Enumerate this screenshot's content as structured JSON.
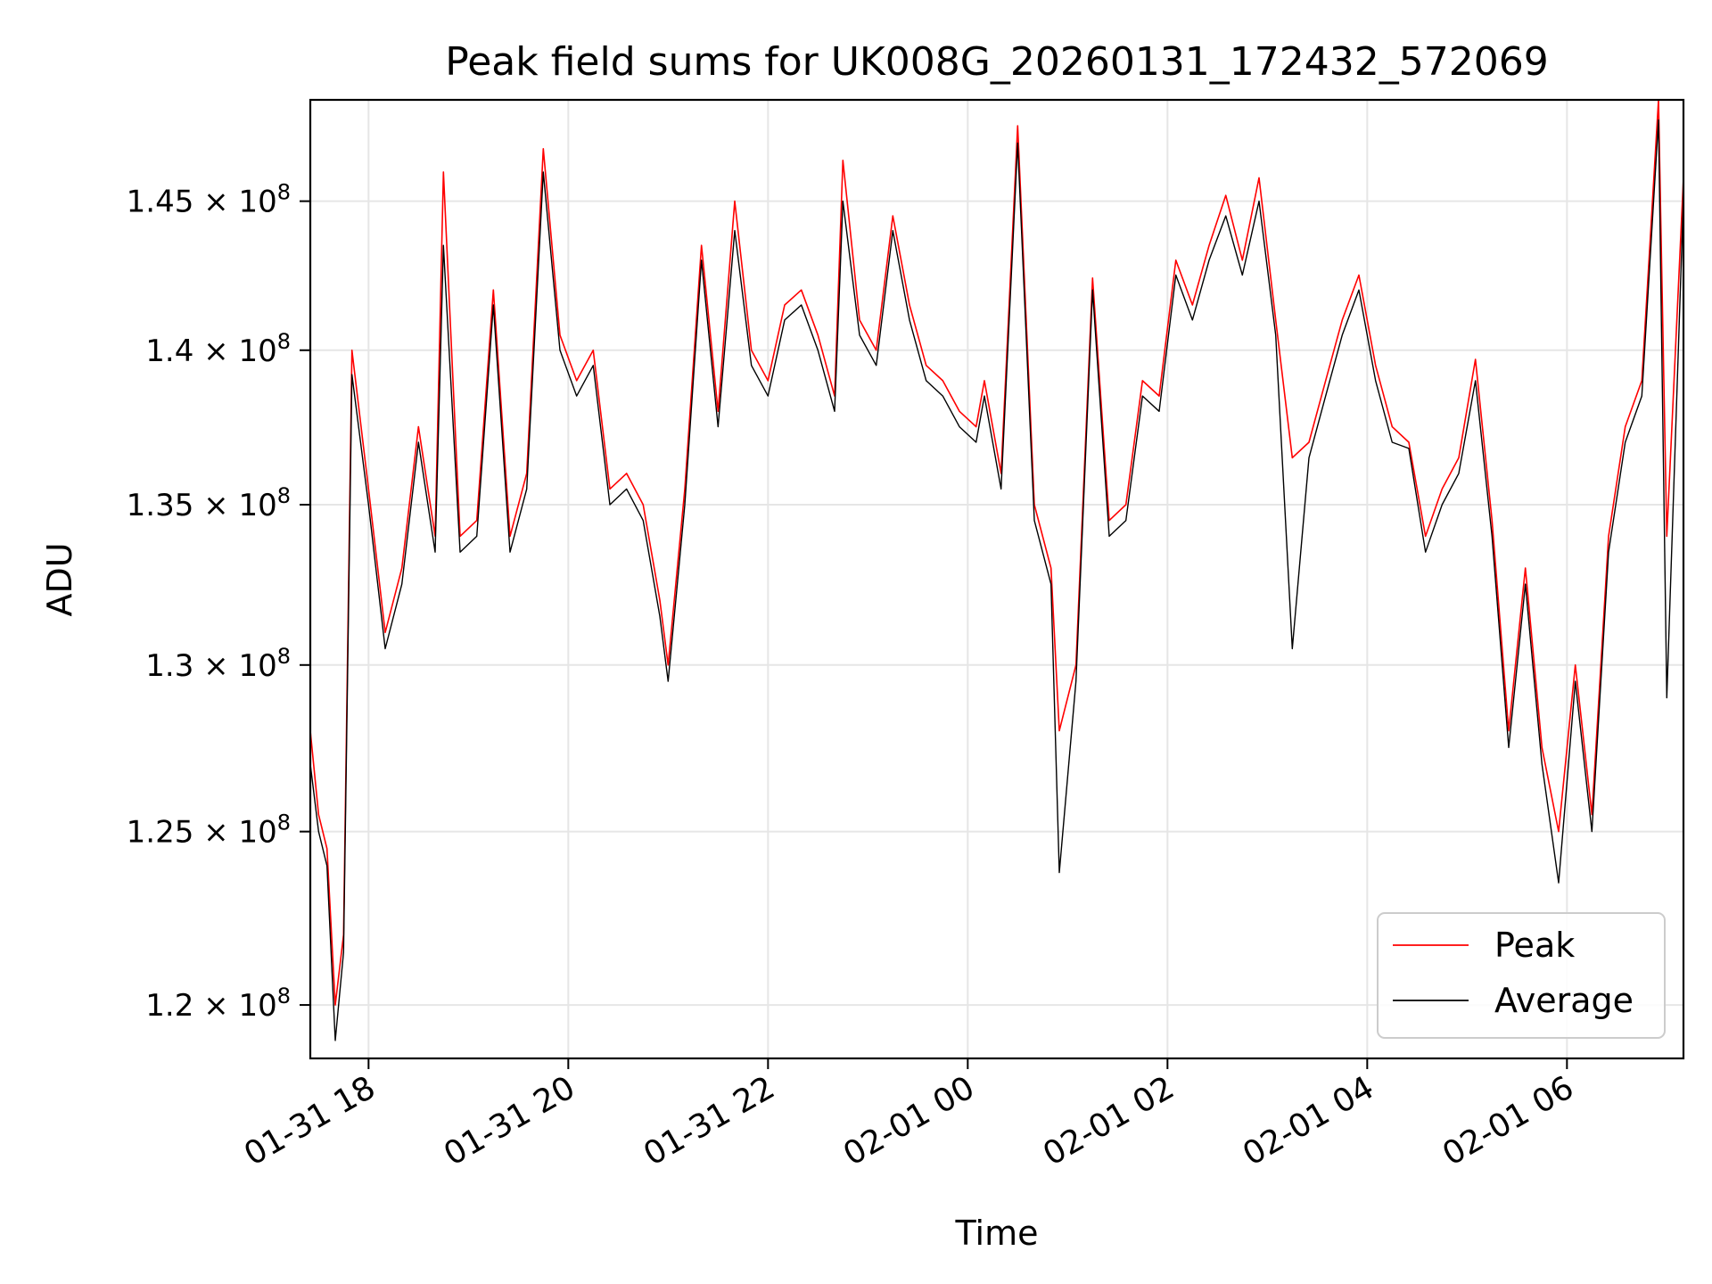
{
  "chart_data": {
    "type": "line",
    "title": "Peak field sums for UK008G_20260131_172432_572069",
    "xlabel": "Time",
    "ylabel": "ADU",
    "x_range": [
      "2026-01-31 17:25",
      "2026-02-01 07:10"
    ],
    "x_ticks": [
      {
        "t": "2026-01-31 18:00",
        "label": "01-31 18"
      },
      {
        "t": "2026-01-31 20:00",
        "label": "01-31 20"
      },
      {
        "t": "2026-01-31 22:00",
        "label": "01-31 22"
      },
      {
        "t": "2026-02-01 00:00",
        "label": "02-01 00"
      },
      {
        "t": "2026-02-01 02:00",
        "label": "02-01 02"
      },
      {
        "t": "2026-02-01 04:00",
        "label": "02-01 04"
      },
      {
        "t": "2026-02-01 06:00",
        "label": "02-01 06"
      }
    ],
    "y_scale": "log",
    "ylim": [
      118500000,
      148500000
    ],
    "y_ticks": [
      {
        "v": 120000000,
        "mant": "1.2"
      },
      {
        "v": 125000000,
        "mant": "1.25"
      },
      {
        "v": 130000000,
        "mant": "1.3"
      },
      {
        "v": 135000000,
        "mant": "1.35"
      },
      {
        "v": 140000000,
        "mant": "1.4"
      },
      {
        "v": 145000000,
        "mant": "1.45"
      }
    ],
    "y_tick_exp": "8",
    "grid": true,
    "legend_position": "lower right",
    "series": [
      {
        "name": "Peak",
        "color": "#ff0000",
        "points": [
          [
            "2026-01-31 17:25",
            128000000
          ],
          [
            "2026-01-31 17:30",
            125500000
          ],
          [
            "2026-01-31 17:35",
            124500000
          ],
          [
            "2026-01-31 17:40",
            120000000
          ],
          [
            "2026-01-31 17:45",
            122000000
          ],
          [
            "2026-01-31 17:50",
            140000000
          ],
          [
            "2026-01-31 18:00",
            135500000
          ],
          [
            "2026-01-31 18:10",
            131000000
          ],
          [
            "2026-01-31 18:20",
            133000000
          ],
          [
            "2026-01-31 18:30",
            137500000
          ],
          [
            "2026-01-31 18:40",
            134000000
          ],
          [
            "2026-01-31 18:45",
            146000000
          ],
          [
            "2026-01-31 18:55",
            134000000
          ],
          [
            "2026-01-31 19:05",
            134500000
          ],
          [
            "2026-01-31 19:15",
            142000000
          ],
          [
            "2026-01-31 19:25",
            134000000
          ],
          [
            "2026-01-31 19:35",
            136000000
          ],
          [
            "2026-01-31 19:45",
            146800000
          ],
          [
            "2026-01-31 19:55",
            140500000
          ],
          [
            "2026-01-31 20:05",
            139000000
          ],
          [
            "2026-01-31 20:15",
            140000000
          ],
          [
            "2026-01-31 20:25",
            135500000
          ],
          [
            "2026-01-31 20:35",
            136000000
          ],
          [
            "2026-01-31 20:45",
            135000000
          ],
          [
            "2026-01-31 20:55",
            132000000
          ],
          [
            "2026-01-31 21:00",
            130000000
          ],
          [
            "2026-01-31 21:10",
            135500000
          ],
          [
            "2026-01-31 21:20",
            143500000
          ],
          [
            "2026-01-31 21:30",
            138000000
          ],
          [
            "2026-01-31 21:40",
            145000000
          ],
          [
            "2026-01-31 21:50",
            140000000
          ],
          [
            "2026-01-31 22:00",
            139000000
          ],
          [
            "2026-01-31 22:10",
            141500000
          ],
          [
            "2026-01-31 22:20",
            142000000
          ],
          [
            "2026-01-31 22:30",
            140500000
          ],
          [
            "2026-01-31 22:40",
            138500000
          ],
          [
            "2026-01-31 22:45",
            146400000
          ],
          [
            "2026-01-31 22:55",
            141000000
          ],
          [
            "2026-01-31 23:05",
            140000000
          ],
          [
            "2026-01-31 23:15",
            144500000
          ],
          [
            "2026-01-31 23:25",
            141500000
          ],
          [
            "2026-01-31 23:35",
            139500000
          ],
          [
            "2026-01-31 23:45",
            139000000
          ],
          [
            "2026-01-31 23:55",
            138000000
          ],
          [
            "2026-02-01 00:05",
            137500000
          ],
          [
            "2026-02-01 00:10",
            139000000
          ],
          [
            "2026-02-01 00:20",
            136000000
          ],
          [
            "2026-02-01 00:30",
            147600000
          ],
          [
            "2026-02-01 00:40",
            135000000
          ],
          [
            "2026-02-01 00:50",
            133000000
          ],
          [
            "2026-02-01 00:55",
            128000000
          ],
          [
            "2026-02-01 01:05",
            130000000
          ],
          [
            "2026-02-01 01:15",
            142400000
          ],
          [
            "2026-02-01 01:25",
            134500000
          ],
          [
            "2026-02-01 01:35",
            135000000
          ],
          [
            "2026-02-01 01:45",
            139000000
          ],
          [
            "2026-02-01 01:55",
            138500000
          ],
          [
            "2026-02-01 02:05",
            143000000
          ],
          [
            "2026-02-01 02:15",
            141500000
          ],
          [
            "2026-02-01 02:25",
            143500000
          ],
          [
            "2026-02-01 02:35",
            145200000
          ],
          [
            "2026-02-01 02:45",
            143000000
          ],
          [
            "2026-02-01 02:55",
            145800000
          ],
          [
            "2026-02-01 03:05",
            141000000
          ],
          [
            "2026-02-01 03:15",
            136500000
          ],
          [
            "2026-02-01 03:25",
            137000000
          ],
          [
            "2026-02-01 03:35",
            139000000
          ],
          [
            "2026-02-01 03:45",
            141000000
          ],
          [
            "2026-02-01 03:55",
            142500000
          ],
          [
            "2026-02-01 04:05",
            139500000
          ],
          [
            "2026-02-01 04:15",
            137500000
          ],
          [
            "2026-02-01 04:25",
            137000000
          ],
          [
            "2026-02-01 04:35",
            134000000
          ],
          [
            "2026-02-01 04:45",
            135500000
          ],
          [
            "2026-02-01 04:55",
            136500000
          ],
          [
            "2026-02-01 05:05",
            139700000
          ],
          [
            "2026-02-01 05:15",
            134500000
          ],
          [
            "2026-02-01 05:25",
            128000000
          ],
          [
            "2026-02-01 05:35",
            133000000
          ],
          [
            "2026-02-01 05:45",
            127500000
          ],
          [
            "2026-02-01 05:55",
            125000000
          ],
          [
            "2026-02-01 06:05",
            130000000
          ],
          [
            "2026-02-01 06:15",
            125500000
          ],
          [
            "2026-02-01 06:25",
            134000000
          ],
          [
            "2026-02-01 06:35",
            137500000
          ],
          [
            "2026-02-01 06:45",
            139000000
          ],
          [
            "2026-02-01 06:55",
            148500000
          ],
          [
            "2026-02-01 07:00",
            134000000
          ],
          [
            "2026-02-01 07:10",
            145800000
          ]
        ]
      },
      {
        "name": "Average",
        "color": "#000000",
        "points": [
          [
            "2026-01-31 17:25",
            127000000
          ],
          [
            "2026-01-31 17:30",
            125000000
          ],
          [
            "2026-01-31 17:35",
            124000000
          ],
          [
            "2026-01-31 17:40",
            119000000
          ],
          [
            "2026-01-31 17:45",
            121500000
          ],
          [
            "2026-01-31 17:50",
            139200000
          ],
          [
            "2026-01-31 18:00",
            135000000
          ],
          [
            "2026-01-31 18:10",
            130500000
          ],
          [
            "2026-01-31 18:20",
            132500000
          ],
          [
            "2026-01-31 18:30",
            137000000
          ],
          [
            "2026-01-31 18:40",
            133500000
          ],
          [
            "2026-01-31 18:45",
            143500000
          ],
          [
            "2026-01-31 18:55",
            133500000
          ],
          [
            "2026-01-31 19:05",
            134000000
          ],
          [
            "2026-01-31 19:15",
            141500000
          ],
          [
            "2026-01-31 19:25",
            133500000
          ],
          [
            "2026-01-31 19:35",
            135500000
          ],
          [
            "2026-01-31 19:45",
            146000000
          ],
          [
            "2026-01-31 19:55",
            140000000
          ],
          [
            "2026-01-31 20:05",
            138500000
          ],
          [
            "2026-01-31 20:15",
            139500000
          ],
          [
            "2026-01-31 20:25",
            135000000
          ],
          [
            "2026-01-31 20:35",
            135500000
          ],
          [
            "2026-01-31 20:45",
            134500000
          ],
          [
            "2026-01-31 20:55",
            131500000
          ],
          [
            "2026-01-31 21:00",
            129500000
          ],
          [
            "2026-01-31 21:10",
            135000000
          ],
          [
            "2026-01-31 21:20",
            143000000
          ],
          [
            "2026-01-31 21:30",
            137500000
          ],
          [
            "2026-01-31 21:40",
            144000000
          ],
          [
            "2026-01-31 21:50",
            139500000
          ],
          [
            "2026-01-31 22:00",
            138500000
          ],
          [
            "2026-01-31 22:10",
            141000000
          ],
          [
            "2026-01-31 22:20",
            141500000
          ],
          [
            "2026-01-31 22:30",
            140000000
          ],
          [
            "2026-01-31 22:40",
            138000000
          ],
          [
            "2026-01-31 22:45",
            145000000
          ],
          [
            "2026-01-31 22:55",
            140500000
          ],
          [
            "2026-01-31 23:05",
            139500000
          ],
          [
            "2026-01-31 23:15",
            144000000
          ],
          [
            "2026-01-31 23:25",
            141000000
          ],
          [
            "2026-01-31 23:35",
            139000000
          ],
          [
            "2026-01-31 23:45",
            138500000
          ],
          [
            "2026-01-31 23:55",
            137500000
          ],
          [
            "2026-02-01 00:05",
            137000000
          ],
          [
            "2026-02-01 00:10",
            138500000
          ],
          [
            "2026-02-01 00:20",
            135500000
          ],
          [
            "2026-02-01 00:30",
            147000000
          ],
          [
            "2026-02-01 00:40",
            134500000
          ],
          [
            "2026-02-01 00:50",
            132500000
          ],
          [
            "2026-02-01 00:55",
            123800000
          ],
          [
            "2026-02-01 01:05",
            129500000
          ],
          [
            "2026-02-01 01:15",
            142000000
          ],
          [
            "2026-02-01 01:25",
            134000000
          ],
          [
            "2026-02-01 01:35",
            134500000
          ],
          [
            "2026-02-01 01:45",
            138500000
          ],
          [
            "2026-02-01 01:55",
            138000000
          ],
          [
            "2026-02-01 02:05",
            142500000
          ],
          [
            "2026-02-01 02:15",
            141000000
          ],
          [
            "2026-02-01 02:25",
            143000000
          ],
          [
            "2026-02-01 02:35",
            144500000
          ],
          [
            "2026-02-01 02:45",
            142500000
          ],
          [
            "2026-02-01 02:55",
            145000000
          ],
          [
            "2026-02-01 03:05",
            140500000
          ],
          [
            "2026-02-01 03:15",
            130500000
          ],
          [
            "2026-02-01 03:25",
            136500000
          ],
          [
            "2026-02-01 03:35",
            138500000
          ],
          [
            "2026-02-01 03:45",
            140500000
          ],
          [
            "2026-02-01 03:55",
            142000000
          ],
          [
            "2026-02-01 04:05",
            139000000
          ],
          [
            "2026-02-01 04:15",
            137000000
          ],
          [
            "2026-02-01 04:25",
            136800000
          ],
          [
            "2026-02-01 04:35",
            133500000
          ],
          [
            "2026-02-01 04:45",
            135000000
          ],
          [
            "2026-02-01 04:55",
            136000000
          ],
          [
            "2026-02-01 05:05",
            139000000
          ],
          [
            "2026-02-01 05:15",
            134000000
          ],
          [
            "2026-02-01 05:25",
            127500000
          ],
          [
            "2026-02-01 05:35",
            132500000
          ],
          [
            "2026-02-01 05:45",
            127000000
          ],
          [
            "2026-02-01 05:55",
            123500000
          ],
          [
            "2026-02-01 06:05",
            129500000
          ],
          [
            "2026-02-01 06:15",
            125000000
          ],
          [
            "2026-02-01 06:25",
            133500000
          ],
          [
            "2026-02-01 06:35",
            137000000
          ],
          [
            "2026-02-01 06:45",
            138500000
          ],
          [
            "2026-02-01 06:55",
            147800000
          ],
          [
            "2026-02-01 07:00",
            129000000
          ],
          [
            "2026-02-01 07:10",
            145200000
          ]
        ]
      }
    ]
  }
}
